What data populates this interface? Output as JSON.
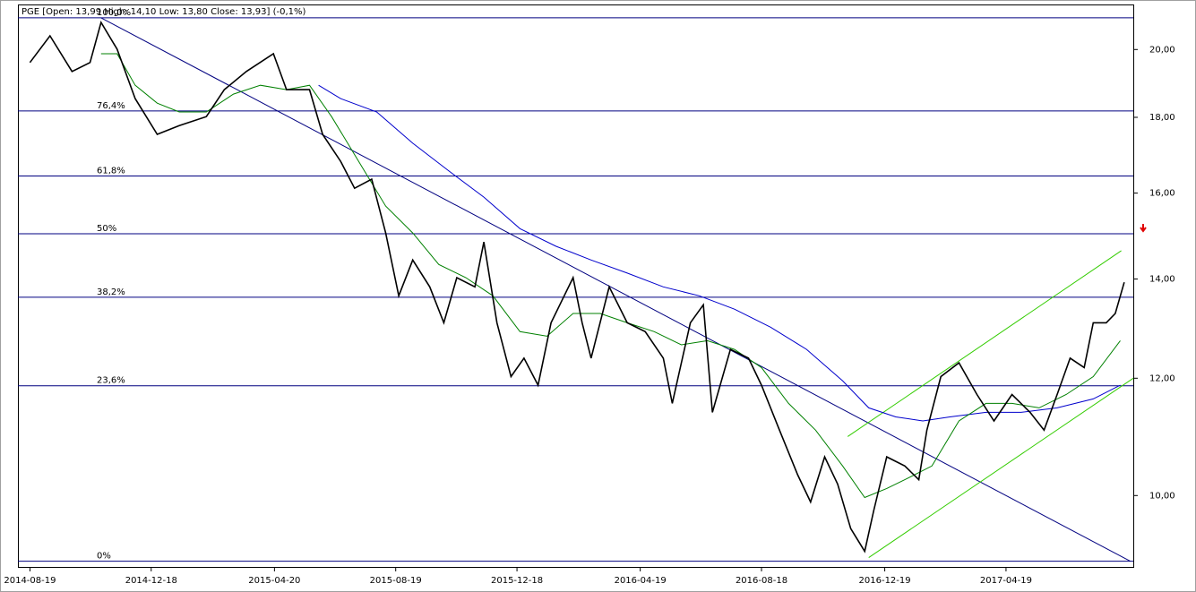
{
  "chart_data": {
    "type": "line",
    "title": "PGE [Open: 13,99  High: 14,10  Low: 13,80  Close: 13,93] (-0,1%)",
    "xlim": [
      "2014-08-07",
      "2017-08-24"
    ],
    "xticks": [
      "2014-08-19",
      "2014-12-18",
      "2015-04-20",
      "2015-08-19",
      "2015-12-18",
      "2016-04-19",
      "2016-08-18",
      "2016-12-19",
      "2017-04-19"
    ],
    "ylim": [
      8.95,
      21.45
    ],
    "log_scale": true,
    "yticks": [
      {
        "value": 10,
        "label": "10,00"
      },
      {
        "value": 12,
        "label": "12,00"
      },
      {
        "value": 14,
        "label": "14,00"
      },
      {
        "value": 16,
        "label": "16,00"
      },
      {
        "value": 18,
        "label": "18,00"
      },
      {
        "value": 20,
        "label": "20,00"
      }
    ],
    "series": [
      {
        "color": "#000000",
        "x": [
          "2014-08-19",
          "2014-09-08",
          "2014-09-30",
          "2014-10-18",
          "2014-10-29",
          "2014-11-14",
          "2014-12-02",
          "2014-12-24",
          "2015-01-15",
          "2015-02-11",
          "2015-03-01",
          "2015-03-23",
          "2015-04-19",
          "2015-05-02",
          "2015-05-25",
          "2015-06-07",
          "2015-06-25",
          "2015-07-09",
          "2015-07-26",
          "2015-08-09",
          "2015-08-22",
          "2015-09-05",
          "2015-09-22",
          "2015-10-06",
          "2015-10-19",
          "2015-11-06",
          "2015-11-15",
          "2015-11-28",
          "2015-12-12",
          "2015-12-25",
          "2016-01-08",
          "2016-01-21",
          "2016-02-12",
          "2016-02-21",
          "2016-03-01",
          "2016-03-19",
          "2016-04-06",
          "2016-04-24",
          "2016-05-12",
          "2016-05-21",
          "2016-06-08",
          "2016-06-21",
          "2016-06-30",
          "2016-07-18",
          "2016-08-05",
          "2016-08-18",
          "2016-09-05",
          "2016-09-23",
          "2016-10-06",
          "2016-10-20",
          "2016-11-02",
          "2016-11-15",
          "2016-11-29",
          "2016-12-08",
          "2016-12-21",
          "2017-01-08",
          "2017-01-22",
          "2017-01-30",
          "2017-02-13",
          "2017-03-03",
          "2017-03-21",
          "2017-04-07",
          "2017-04-25",
          "2017-05-13",
          "2017-05-27",
          "2017-06-09",
          "2017-06-22",
          "2017-07-06",
          "2017-07-15",
          "2017-07-28",
          "2017-08-06",
          "2017-08-15"
        ],
        "values": [
          19.6,
          20.43,
          19.33,
          19.6,
          20.86,
          20.01,
          18.53,
          17.53,
          17.77,
          18.02,
          18.79,
          19.33,
          19.87,
          18.79,
          18.79,
          17.53,
          16.81,
          16.12,
          16.35,
          15.04,
          13.64,
          14.42,
          13.83,
          13.08,
          14.03,
          13.83,
          14.83,
          13.08,
          12.03,
          12.38,
          11.87,
          13.08,
          14.03,
          13.08,
          12.38,
          13.83,
          13.08,
          12.9,
          12.38,
          11.54,
          13.08,
          13.45,
          11.38,
          12.55,
          12.38,
          11.87,
          11.07,
          10.33,
          9.9,
          10.62,
          10.18,
          9.5,
          9.17,
          9.77,
          10.62,
          10.47,
          10.25,
          11.07,
          12.03,
          12.29,
          11.7,
          11.23,
          11.7,
          11.38,
          11.07,
          11.7,
          12.38,
          12.2,
          13.08,
          13.08,
          13.27,
          13.93
        ]
      },
      {
        "color": "#008000",
        "x": [
          "2014-10-29",
          "2014-11-14",
          "2014-12-02",
          "2014-12-24",
          "2015-01-15",
          "2015-02-11",
          "2015-03-10",
          "2015-04-06",
          "2015-05-02",
          "2015-05-25",
          "2015-06-16",
          "2015-07-13",
          "2015-08-09",
          "2015-09-05",
          "2015-10-01",
          "2015-10-28",
          "2015-11-24",
          "2015-12-21",
          "2016-01-17",
          "2016-02-12",
          "2016-03-10",
          "2016-04-06",
          "2016-05-03",
          "2016-05-30",
          "2016-06-25",
          "2016-07-22",
          "2016-08-18",
          "2016-09-14",
          "2016-10-11",
          "2016-11-07",
          "2016-11-29",
          "2016-12-21",
          "2017-01-08",
          "2017-02-04",
          "2017-03-03",
          "2017-03-30",
          "2017-04-25",
          "2017-05-22",
          "2017-06-18",
          "2017-07-15",
          "2017-08-11"
        ],
        "values": [
          19.87,
          19.87,
          18.92,
          18.4,
          18.15,
          18.15,
          18.66,
          18.92,
          18.79,
          18.92,
          18.02,
          16.81,
          15.68,
          15.04,
          14.32,
          14.03,
          13.64,
          12.9,
          12.81,
          13.27,
          13.27,
          13.08,
          12.9,
          12.64,
          12.72,
          12.55,
          12.2,
          11.54,
          11.07,
          10.47,
          9.97,
          10.11,
          10.25,
          10.47,
          11.23,
          11.54,
          11.54,
          11.46,
          11.7,
          12.03,
          12.72
        ]
      },
      {
        "color": "#0000cc",
        "x": [
          "2015-06-03",
          "2015-06-25",
          "2015-07-31",
          "2015-09-05",
          "2015-10-10",
          "2015-11-15",
          "2015-12-21",
          "2016-01-26",
          "2016-03-01",
          "2016-04-06",
          "2016-05-12",
          "2016-06-17",
          "2016-07-22",
          "2016-08-27",
          "2016-10-02",
          "2016-11-07",
          "2016-12-03",
          "2016-12-30",
          "2017-01-26",
          "2017-02-22",
          "2017-03-30",
          "2017-05-04",
          "2017-06-09",
          "2017-07-15",
          "2017-08-11"
        ],
        "values": [
          18.92,
          18.53,
          18.15,
          17.29,
          16.58,
          15.9,
          15.14,
          14.73,
          14.42,
          14.13,
          13.83,
          13.64,
          13.36,
          12.99,
          12.55,
          11.95,
          11.46,
          11.3,
          11.23,
          11.3,
          11.38,
          11.38,
          11.46,
          11.62,
          11.87
        ]
      }
    ],
    "fibonacci": [
      {
        "level": "100,0%",
        "price": 21.01
      },
      {
        "level": "76,4%",
        "price": 18.18
      },
      {
        "level": "61,8%",
        "price": 16.43
      },
      {
        "level": "50%",
        "price": 15.02
      },
      {
        "level": "38,2%",
        "price": 13.61
      },
      {
        "level": "23,6%",
        "price": 11.86
      },
      {
        "level": "0%",
        "price": 9.03
      }
    ],
    "fib_color": "#000080",
    "trend_lines": [
      {
        "color": "#000080",
        "x": [
          "2014-10-29",
          "2017-08-21"
        ],
        "values": [
          21.01,
          9.03
        ]
      },
      {
        "color": "#33cc00",
        "x": [
          "2016-11-12",
          "2017-08-12"
        ],
        "values": [
          10.96,
          14.63
        ]
      },
      {
        "color": "#33cc00",
        "x": [
          "2016-12-03",
          "2017-08-24"
        ],
        "values": [
          9.08,
          12.0
        ]
      }
    ]
  }
}
